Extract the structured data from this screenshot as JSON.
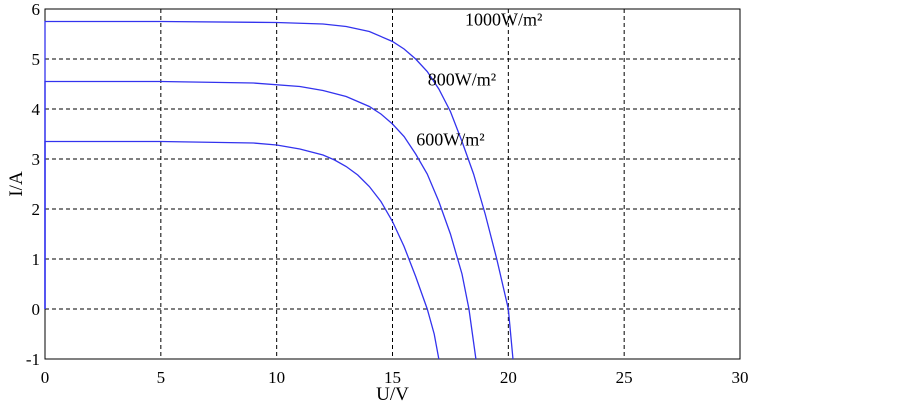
{
  "chart_data": {
    "type": "line",
    "xlabel": "U/V",
    "ylabel": "I/A",
    "xlim": [
      0,
      30
    ],
    "ylim": [
      -1,
      6
    ],
    "xticks": [
      0,
      5,
      10,
      15,
      20,
      25,
      30
    ],
    "yticks": [
      -1,
      0,
      1,
      2,
      3,
      4,
      5,
      6
    ],
    "grid": true,
    "color": "#3333ee",
    "series": [
      {
        "name": "1000W/m²",
        "x": [
          0,
          5,
          10,
          12,
          13,
          14,
          15,
          15.5,
          16,
          16.5,
          17,
          17.5,
          18,
          18.5,
          19,
          19.5,
          20,
          20.2
        ],
        "y": [
          5.75,
          5.75,
          5.73,
          5.7,
          5.65,
          5.55,
          5.35,
          5.2,
          5.0,
          4.75,
          4.4,
          3.95,
          3.35,
          2.7,
          1.9,
          1.0,
          0.0,
          -1.0
        ]
      },
      {
        "name": "800W/m²",
        "x": [
          0,
          5,
          9,
          11,
          12,
          13,
          14,
          14.5,
          15,
          15.5,
          16,
          16.5,
          17,
          17.5,
          18,
          18.3,
          18.6
        ],
        "y": [
          4.55,
          4.55,
          4.52,
          4.45,
          4.37,
          4.25,
          4.05,
          3.9,
          3.7,
          3.45,
          3.1,
          2.7,
          2.15,
          1.5,
          0.7,
          0.0,
          -1.0
        ]
      },
      {
        "name": "600W/m²",
        "x": [
          0,
          5,
          9,
          10,
          11,
          12,
          12.5,
          13,
          13.5,
          14,
          14.5,
          15,
          15.5,
          16,
          16.5,
          16.8,
          17.0
        ],
        "y": [
          3.35,
          3.35,
          3.32,
          3.28,
          3.2,
          3.08,
          2.98,
          2.85,
          2.68,
          2.45,
          2.15,
          1.75,
          1.25,
          0.65,
          0.0,
          -0.5,
          -1.0
        ]
      }
    ],
    "annotations": [
      {
        "text": "1000W/m²",
        "x": 19.8,
        "y": 5.75
      },
      {
        "text": "800W/m²",
        "x": 18.0,
        "y": 4.55
      },
      {
        "text": "600W/m²",
        "x": 17.5,
        "y": 3.35
      }
    ]
  }
}
